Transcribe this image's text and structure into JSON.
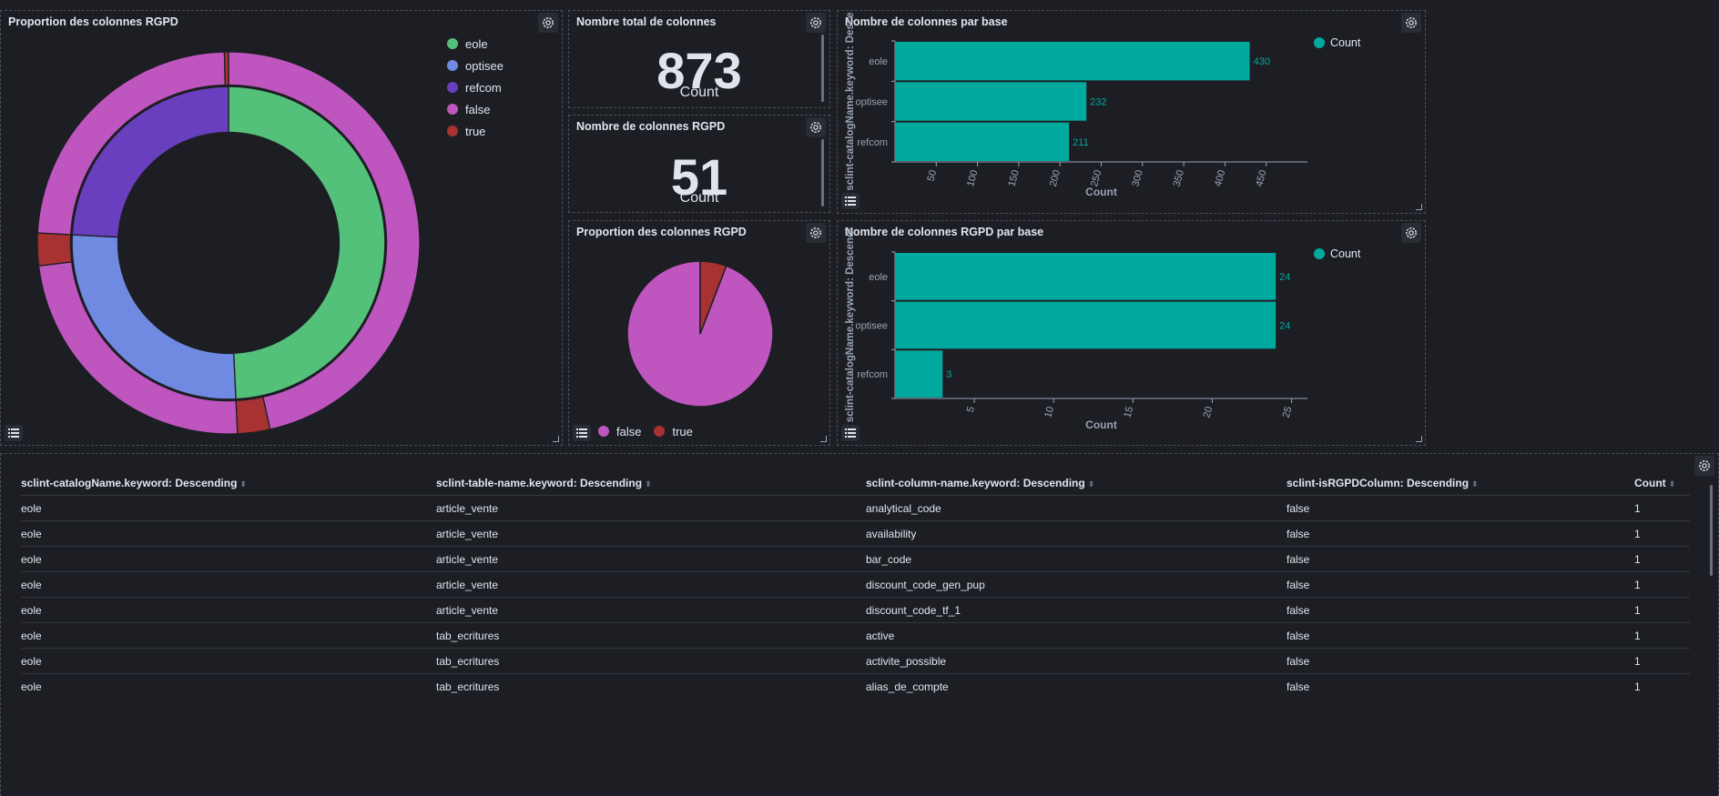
{
  "colors": {
    "eole": "#54c17a",
    "optisee": "#6f8ae0",
    "refcom": "#6a3fbf",
    "false": "#bf55bf",
    "true": "#a83232",
    "bar": "#00a99d"
  },
  "panels": {
    "donut": {
      "title": "Proportion des colonnes RGPD",
      "legend": [
        "eole",
        "optisee",
        "refcom",
        "false",
        "true"
      ]
    },
    "total": {
      "title": "Nombre total de colonnes",
      "value": "873",
      "label": "Count"
    },
    "rgpd": {
      "title": "Nombre de colonnes RGPD",
      "value": "51",
      "label": "Count"
    },
    "pie": {
      "title": "Proportion des colonnes RGPD",
      "legend": [
        "false",
        "true"
      ]
    },
    "bar1": {
      "title": "Nombre de colonnes par base",
      "legend": "Count"
    },
    "bar2": {
      "title": "Nombre de colonnes RGPD par base",
      "legend": "Count"
    }
  },
  "chart_data": [
    {
      "type": "pie",
      "title": "Proportion des colonnes RGPD",
      "inner_ring": {
        "categories": [
          "eole",
          "optisee",
          "refcom"
        ],
        "values": [
          430,
          232,
          211
        ]
      },
      "outer_ring": {
        "categories": [
          "eole:false",
          "eole:true",
          "optisee:false",
          "optisee:true",
          "refcom:false",
          "refcom:true"
        ],
        "values": [
          406,
          24,
          208,
          24,
          208,
          3
        ]
      },
      "legend": [
        "eole",
        "optisee",
        "refcom",
        "false",
        "true"
      ]
    },
    {
      "type": "pie",
      "title": "Proportion des colonnes RGPD",
      "categories": [
        "false",
        "true"
      ],
      "values": [
        822,
        51
      ]
    },
    {
      "type": "bar",
      "orientation": "horizontal",
      "title": "Nombre de colonnes par base",
      "categories": [
        "eole",
        "optisee",
        "refcom"
      ],
      "values": [
        430,
        232,
        211
      ],
      "xlabel": "Count",
      "ylabel": "sclint-catalogName.keyword: Desce",
      "xticks": [
        "50",
        "100",
        "150",
        "200",
        "250",
        "300",
        "350",
        "400",
        "450"
      ],
      "xlim": [
        0,
        500
      ],
      "legend": "Count"
    },
    {
      "type": "bar",
      "orientation": "horizontal",
      "title": "Nombre de colonnes RGPD par base",
      "categories": [
        "eole",
        "optisee",
        "refcom"
      ],
      "values": [
        24,
        24,
        3
      ],
      "xlabel": "Count",
      "ylabel": "sclint-catalogName.keyword: Descendi",
      "xticks": [
        "5",
        "10",
        "15",
        "20",
        "25"
      ],
      "xlim": [
        0,
        26
      ],
      "legend": "Count"
    }
  ],
  "table": {
    "headers": [
      "sclint-catalogName.keyword: Descending",
      "sclint-table-name.keyword: Descending",
      "sclint-column-name.keyword: Descending",
      "sclint-isRGPDColumn: Descending",
      "Count"
    ],
    "rows": [
      [
        "eole",
        "article_vente",
        "analytical_code",
        "false",
        "1"
      ],
      [
        "eole",
        "article_vente",
        "availability",
        "false",
        "1"
      ],
      [
        "eole",
        "article_vente",
        "bar_code",
        "false",
        "1"
      ],
      [
        "eole",
        "article_vente",
        "discount_code_gen_pup",
        "false",
        "1"
      ],
      [
        "eole",
        "article_vente",
        "discount_code_tf_1",
        "false",
        "1"
      ],
      [
        "eole",
        "tab_ecritures",
        "active",
        "false",
        "1"
      ],
      [
        "eole",
        "tab_ecritures",
        "activite_possible",
        "false",
        "1"
      ],
      [
        "eole",
        "tab_ecritures",
        "alias_de_compte",
        "false",
        "1"
      ]
    ]
  }
}
